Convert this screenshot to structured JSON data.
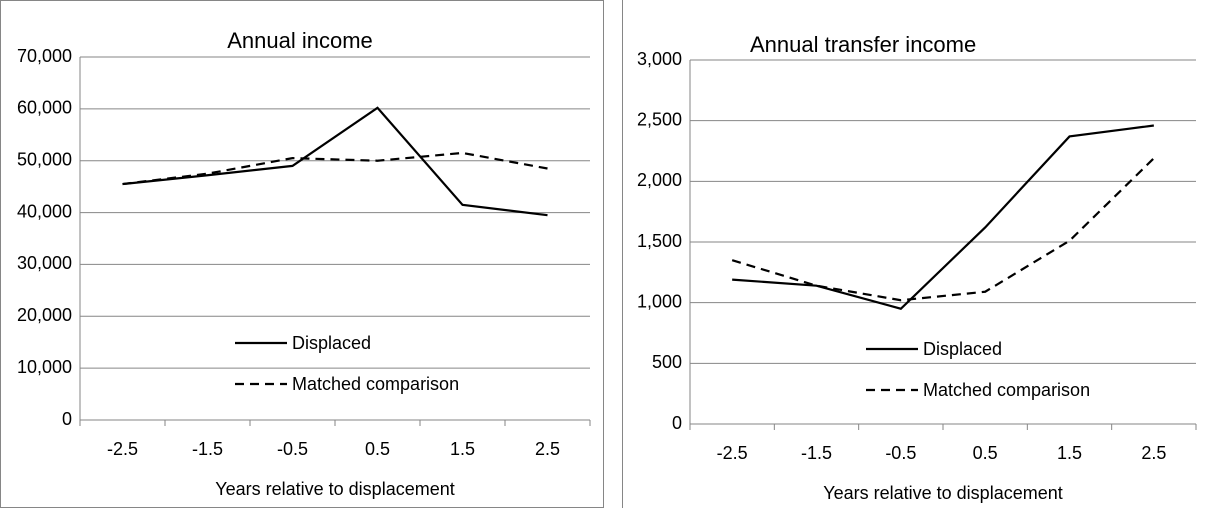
{
  "chart_data": [
    {
      "type": "line",
      "title": "Annual income",
      "x_label": "Years relative to displacement",
      "categories": [
        "-2.5",
        "-1.5",
        "-0.5",
        "0.5",
        "1.5",
        "2.5"
      ],
      "series": [
        {
          "name": "Displaced",
          "color": "#000000",
          "dash": false,
          "values": [
            45500,
            47200,
            49000,
            60200,
            41500,
            39500
          ]
        },
        {
          "name": "Matched comparison",
          "color": "#000000",
          "dash": true,
          "values": [
            45500,
            47500,
            50500,
            50000,
            51500,
            48500
          ]
        }
      ],
      "ylim": [
        0,
        70000
      ],
      "yticks": [
        0,
        {
          "value": 10000,
          "label": "10,000"
        },
        {
          "value": 20000,
          "label": "20,000"
        },
        {
          "value": 30000,
          "label": "30,000"
        },
        {
          "value": 40000,
          "label": "40,000"
        },
        {
          "value": 50000,
          "label": "50,000"
        },
        {
          "value": 60000,
          "label": "60,000"
        },
        {
          "value": 70000,
          "label": "70,000"
        }
      ],
      "grid": true,
      "legend": "lower center"
    },
    {
      "type": "line",
      "title": "Annual transfer income",
      "x_label": "Years relative to displacement",
      "categories": [
        "-2.5",
        "-1.5",
        "-0.5",
        "0.5",
        "1.5",
        "2.5"
      ],
      "series": [
        {
          "name": "Displaced",
          "color": "#000000",
          "dash": false,
          "values": [
            1190,
            1140,
            950,
            1620,
            2370,
            2460
          ]
        },
        {
          "name": "Matched comparison",
          "color": "#000000",
          "dash": true,
          "values": [
            1350,
            1140,
            1020,
            1090,
            1510,
            2190
          ]
        }
      ],
      "ylim": [
        0,
        3000
      ],
      "yticks": [
        0,
        500,
        {
          "value": 1000,
          "label": "1,000"
        },
        {
          "value": 1500,
          "label": "1,500"
        },
        {
          "value": 2000,
          "label": "2,000"
        },
        {
          "value": 2500,
          "label": "2,500"
        },
        {
          "value": 3000,
          "label": "3,000"
        }
      ],
      "grid": true,
      "legend": "lower right"
    }
  ]
}
